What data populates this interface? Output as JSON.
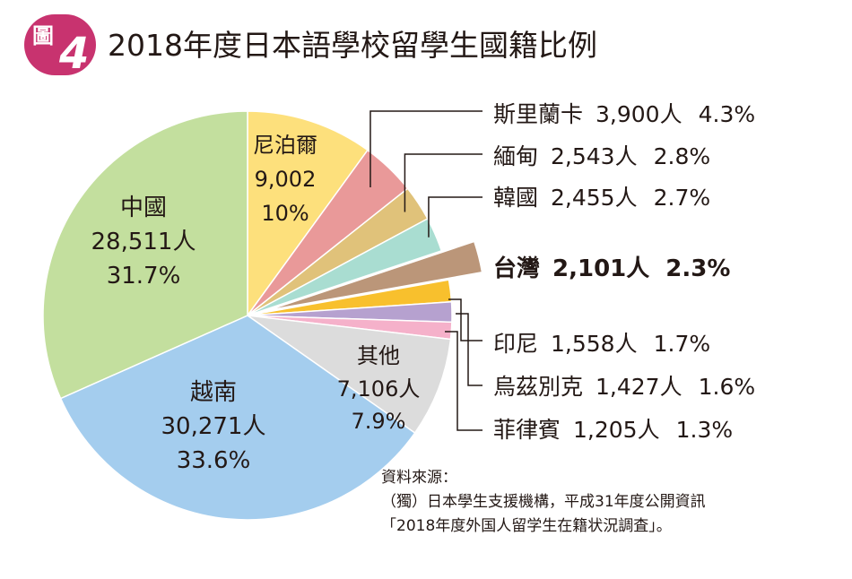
{
  "figure": {
    "badge_char": "圖",
    "badge_num": "4",
    "title": "2018年度日本語學校留學生國籍比例"
  },
  "colors": {
    "badge": "#c8336f",
    "leader": "#231815"
  },
  "chart_data": {
    "type": "pie",
    "title": "2018年度日本語學校留學生國籍比例",
    "slices": [
      {
        "name": "尼泊爾",
        "value": 9002,
        "count_text": "9,002",
        "percent": 10.0,
        "percent_text": "10%",
        "color": "#fde07c"
      },
      {
        "name": "斯里蘭卡",
        "value": 3900,
        "count_text": "3,900人",
        "percent": 4.3,
        "percent_text": "4.3%",
        "color": "#e99999"
      },
      {
        "name": "緬甸",
        "value": 2543,
        "count_text": "2,543人",
        "percent": 2.8,
        "percent_text": "2.8%",
        "color": "#e0c27a"
      },
      {
        "name": "韓國",
        "value": 2455,
        "count_text": "2,455人",
        "percent": 2.7,
        "percent_text": "2.7%",
        "color": "#a9ddd1"
      },
      {
        "name": "台灣",
        "value": 2101,
        "count_text": "2,101人",
        "percent": 2.3,
        "percent_text": "2.3%",
        "color": "#bb9679",
        "exploded": true
      },
      {
        "name": "印尼",
        "value": 1558,
        "count_text": "1,558人",
        "percent": 1.7,
        "percent_text": "1.7%",
        "color": "#f8c02d"
      },
      {
        "name": "烏茲別克",
        "value": 1427,
        "count_text": "1,427人",
        "percent": 1.6,
        "percent_text": "1.6%",
        "color": "#b6a1cf"
      },
      {
        "name": "菲律賓",
        "value": 1205,
        "count_text": "1,205人",
        "percent": 1.3,
        "percent_text": "1.3%",
        "color": "#f5b1ca"
      },
      {
        "name": "其他",
        "value": 7106,
        "count_text": "7,106人",
        "percent": 7.9,
        "percent_text": "7.9%",
        "color": "#dcdcdc"
      },
      {
        "name": "越南",
        "value": 30271,
        "count_text": "30,271人",
        "percent": 33.6,
        "percent_text": "33.6%",
        "color": "#a4cdee"
      },
      {
        "name": "中國",
        "value": 28511,
        "count_text": "28,511人",
        "percent": 31.7,
        "percent_text": "31.7%",
        "color": "#c3df9e"
      }
    ]
  },
  "source": {
    "heading": "資料來源：",
    "line1": "（獨）日本學生支援機構，平成31年度公開資訊",
    "line2": "「2018年度外国人留学生在籍状況調査」。"
  }
}
